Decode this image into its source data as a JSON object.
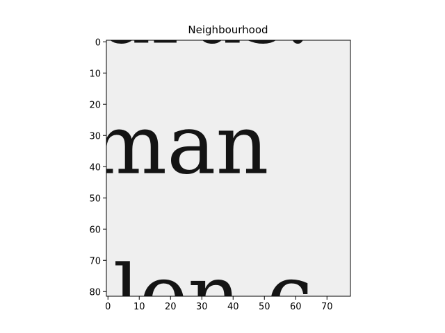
{
  "chart_data": {
    "type": "heatmap",
    "title": "Neighbourhood",
    "xlabel": "",
    "ylabel": "",
    "colormap": "gray",
    "image_width": 78,
    "image_height": 82,
    "xlim": [
      -0.5,
      77.5
    ],
    "ylim": [
      81.5,
      -0.5
    ],
    "x_ticks": [
      0,
      10,
      20,
      30,
      40,
      50,
      60,
      70
    ],
    "y_ticks": [
      0,
      10,
      20,
      30,
      40,
      50,
      60,
      70,
      80
    ],
    "grid": false,
    "legend": "none",
    "image_content": {
      "visible_text_rows": [
        {
          "text": "arus.",
          "row_center": 2,
          "clipped": "top"
        },
        {
          "text": "man",
          "row_center": 40,
          "clipped": "none"
        },
        {
          "text": "alen c",
          "row_center": 79,
          "clipped": "bottom"
        }
      ],
      "background_color": "#efefef",
      "ink_color": "#141414"
    }
  }
}
